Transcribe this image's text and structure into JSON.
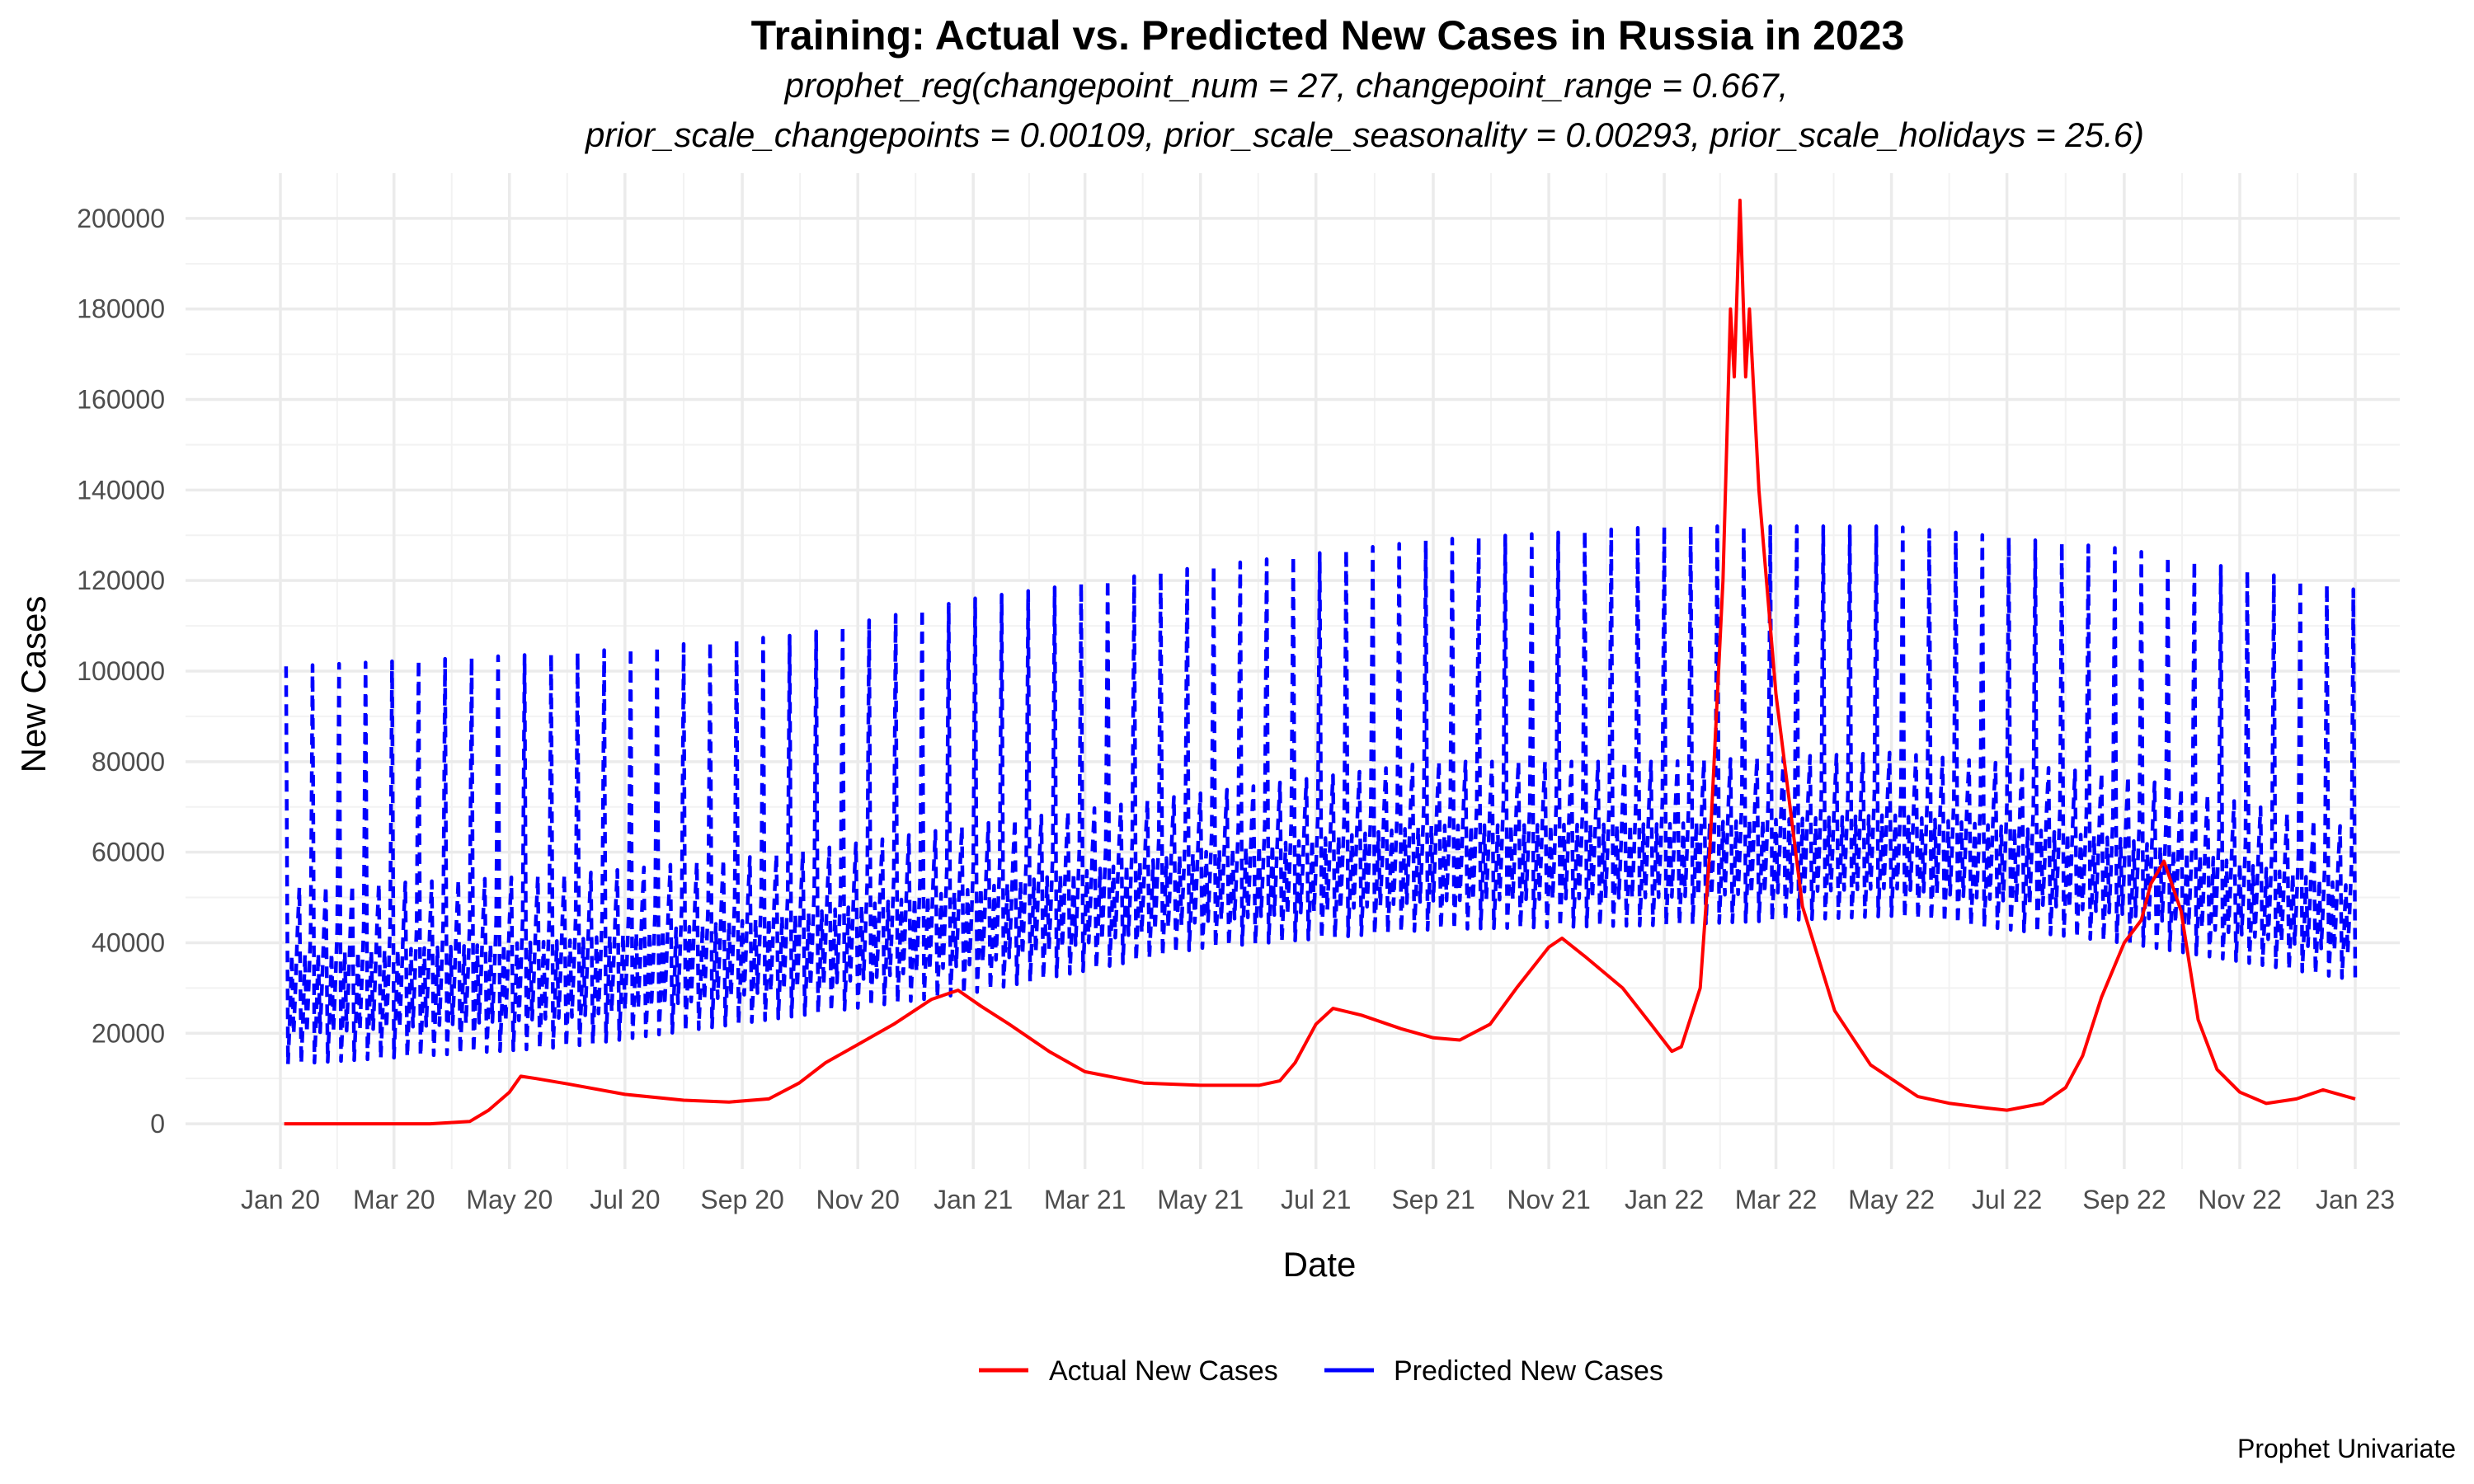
{
  "chart_data": {
    "type": "line",
    "title": "Training: Actual vs. Predicted New Cases in Russia in 2023",
    "subtitle_lines": [
      "prophet_reg(changepoint_num = 27, changepoint_range = 0.667,",
      "prior_scale_changepoints = 0.00109, prior_scale_seasonality = 0.00293, prior_scale_holidays = 25.6)"
    ],
    "xlabel": "Date",
    "ylabel": "New Cases",
    "caption": "Prophet Univariate",
    "x_range": [
      "2020-01-01",
      "2023-01-01"
    ],
    "ylim": [
      -10000,
      210000
    ],
    "y_ticks": [
      0,
      20000,
      40000,
      60000,
      80000,
      100000,
      120000,
      140000,
      160000,
      180000,
      200000
    ],
    "x_ticks": [
      {
        "date": "2020-01-01",
        "label": "Jan 20"
      },
      {
        "date": "2020-03-01",
        "label": "Mar 20"
      },
      {
        "date": "2020-05-01",
        "label": "May 20"
      },
      {
        "date": "2020-07-01",
        "label": "Jul 20"
      },
      {
        "date": "2020-09-01",
        "label": "Sep 20"
      },
      {
        "date": "2020-11-01",
        "label": "Nov 20"
      },
      {
        "date": "2021-01-01",
        "label": "Jan 21"
      },
      {
        "date": "2021-03-01",
        "label": "Mar 21"
      },
      {
        "date": "2021-05-01",
        "label": "May 21"
      },
      {
        "date": "2021-07-01",
        "label": "Jul 21"
      },
      {
        "date": "2021-09-01",
        "label": "Sep 21"
      },
      {
        "date": "2021-11-01",
        "label": "Nov 21"
      },
      {
        "date": "2022-01-01",
        "label": "Jan 22"
      },
      {
        "date": "2022-03-01",
        "label": "Mar 22"
      },
      {
        "date": "2022-05-01",
        "label": "May 22"
      },
      {
        "date": "2022-07-01",
        "label": "Jul 22"
      },
      {
        "date": "2022-09-01",
        "label": "Sep 22"
      },
      {
        "date": "2022-11-01",
        "label": "Nov 22"
      },
      {
        "date": "2023-01-01",
        "label": "Jan 23"
      }
    ],
    "grid": true,
    "legend_position": "bottom",
    "series": [
      {
        "name": "Actual New Cases",
        "color": "#ff0000",
        "line_style": "solid",
        "points": [
          [
            "2020-01-03",
            0
          ],
          [
            "2020-02-15",
            0
          ],
          [
            "2020-03-20",
            0
          ],
          [
            "2020-04-10",
            500
          ],
          [
            "2020-04-20",
            3000
          ],
          [
            "2020-05-01",
            7000
          ],
          [
            "2020-05-07",
            10500
          ],
          [
            "2020-05-15",
            10000
          ],
          [
            "2020-06-01",
            8800
          ],
          [
            "2020-07-01",
            6500
          ],
          [
            "2020-08-01",
            5200
          ],
          [
            "2020-08-25",
            4800
          ],
          [
            "2020-09-15",
            5500
          ],
          [
            "2020-10-01",
            9000
          ],
          [
            "2020-10-15",
            13500
          ],
          [
            "2020-11-01",
            17500
          ],
          [
            "2020-11-20",
            22000
          ],
          [
            "2020-12-10",
            27500
          ],
          [
            "2020-12-24",
            29500
          ],
          [
            "2021-01-05",
            26000
          ],
          [
            "2021-01-20",
            22000
          ],
          [
            "2021-02-10",
            16000
          ],
          [
            "2021-03-01",
            11500
          ],
          [
            "2021-04-01",
            9000
          ],
          [
            "2021-05-01",
            8500
          ],
          [
            "2021-06-01",
            8500
          ],
          [
            "2021-06-12",
            9500
          ],
          [
            "2021-06-20",
            13500
          ],
          [
            "2021-07-01",
            22000
          ],
          [
            "2021-07-10",
            25500
          ],
          [
            "2021-07-25",
            24000
          ],
          [
            "2021-08-15",
            21000
          ],
          [
            "2021-09-01",
            19000
          ],
          [
            "2021-09-15",
            18500
          ],
          [
            "2021-10-01",
            22000
          ],
          [
            "2021-10-15",
            30000
          ],
          [
            "2021-11-01",
            39000
          ],
          [
            "2021-11-08",
            41000
          ],
          [
            "2021-11-20",
            37000
          ],
          [
            "2021-12-10",
            30000
          ],
          [
            "2021-12-25",
            22000
          ],
          [
            "2022-01-05",
            16000
          ],
          [
            "2022-01-10",
            17000
          ],
          [
            "2022-01-20",
            30000
          ],
          [
            "2022-01-25",
            60000
          ],
          [
            "2022-02-01",
            120000
          ],
          [
            "2022-02-05",
            180000
          ],
          [
            "2022-02-07",
            165000
          ],
          [
            "2022-02-10",
            204000
          ],
          [
            "2022-02-13",
            165000
          ],
          [
            "2022-02-15",
            180000
          ],
          [
            "2022-02-20",
            140000
          ],
          [
            "2022-03-01",
            95000
          ],
          [
            "2022-03-15",
            48000
          ],
          [
            "2022-04-01",
            25000
          ],
          [
            "2022-04-20",
            13000
          ],
          [
            "2022-05-15",
            6000
          ],
          [
            "2022-06-01",
            4500
          ],
          [
            "2022-06-20",
            3500
          ],
          [
            "2022-07-01",
            3000
          ],
          [
            "2022-07-20",
            4500
          ],
          [
            "2022-08-01",
            8000
          ],
          [
            "2022-08-10",
            15000
          ],
          [
            "2022-08-20",
            28000
          ],
          [
            "2022-09-01",
            40000
          ],
          [
            "2022-09-10",
            45000
          ],
          [
            "2022-09-15",
            53000
          ],
          [
            "2022-09-22",
            58000
          ],
          [
            "2022-10-01",
            47000
          ],
          [
            "2022-10-10",
            23000
          ],
          [
            "2022-10-20",
            12000
          ],
          [
            "2022-11-01",
            7000
          ],
          [
            "2022-11-15",
            4500
          ],
          [
            "2022-12-01",
            5500
          ],
          [
            "2022-12-15",
            7500
          ],
          [
            "2023-01-01",
            5500
          ]
        ]
      },
      {
        "name": "Predicted New Cases",
        "color": "#0000ff",
        "line_style": "dashed",
        "baseline": [
          [
            "2020-01-01",
            11000
          ],
          [
            "2020-06-01",
            15000
          ],
          [
            "2020-10-01",
            22000
          ],
          [
            "2021-01-01",
            27000
          ],
          [
            "2021-05-01",
            37000
          ],
          [
            "2021-09-01",
            41000
          ],
          [
            "2022-01-01",
            42000
          ],
          [
            "2022-05-01",
            44000
          ],
          [
            "2022-09-01",
            38000
          ],
          [
            "2023-01-01",
            30000
          ]
        ],
        "weekly_peak": [
          [
            "2020-01-01",
            52000
          ],
          [
            "2020-06-01",
            55000
          ],
          [
            "2020-10-01",
            60000
          ],
          [
            "2021-01-01",
            66000
          ],
          [
            "2021-05-01",
            73000
          ],
          [
            "2021-09-01",
            80000
          ],
          [
            "2022-01-01",
            80000
          ],
          [
            "2022-05-01",
            82000
          ],
          [
            "2022-09-01",
            77000
          ],
          [
            "2023-01-01",
            65000
          ]
        ],
        "holiday_spike_peak": [
          [
            "2020-01-01",
            101000
          ],
          [
            "2020-06-01",
            104000
          ],
          [
            "2020-10-01",
            108000
          ],
          [
            "2021-01-01",
            116000
          ],
          [
            "2021-05-01",
            123000
          ],
          [
            "2021-09-01",
            129000
          ],
          [
            "2022-01-01",
            132000
          ],
          [
            "2022-05-01",
            132000
          ],
          [
            "2022-09-01",
            127000
          ],
          [
            "2023-01-01",
            118000
          ]
        ],
        "spike_interval_days": 14
      }
    ]
  }
}
